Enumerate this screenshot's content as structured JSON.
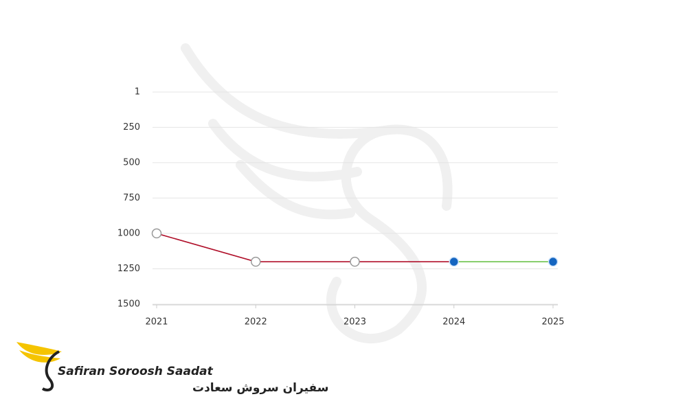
{
  "chart_data": {
    "type": "line",
    "categories": [
      "2021",
      "2022",
      "2023",
      "2024",
      "2025"
    ],
    "series": [
      {
        "color": "#b0102a",
        "marker_color": "#ffffff",
        "values": [
          1000,
          1200,
          1200,
          1200,
          null
        ]
      },
      {
        "color": "#6cc24a",
        "marker_color": "#1565c0",
        "values": [
          null,
          null,
          null,
          1200,
          1200
        ]
      }
    ],
    "ylim": [
      1,
      1500
    ],
    "y_inverted": true,
    "yticks": [
      1,
      250,
      500,
      750,
      1000,
      1250,
      1500
    ],
    "grid": true
  },
  "logo": {
    "name": "Safiran Soroosh Saadat",
    "name_fa": "سفیران سروش سعادت"
  }
}
